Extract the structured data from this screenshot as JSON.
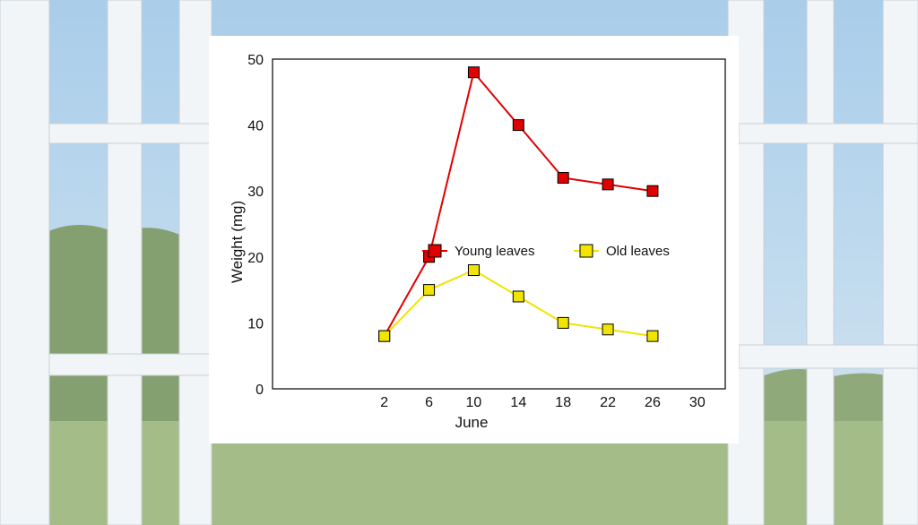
{
  "colors": {
    "sky_top": "#a9cdea",
    "sky_bottom": "#cfe3ef",
    "trees": "#7f9b6e",
    "grass": "#9fb884",
    "frame": "#f4f6f8",
    "frame_shadow": "#c9d1d8",
    "card": "#ffffff",
    "young": "#e00000",
    "old": "#f0e400"
  },
  "chart_data": {
    "type": "line",
    "xlabel": "June",
    "ylabel": "Weight (mg)",
    "x_ticks": [
      2,
      6,
      10,
      14,
      18,
      22,
      26,
      30
    ],
    "y_ticks": [
      0,
      10,
      20,
      30,
      40,
      50
    ],
    "xlim": [
      -8,
      32.5
    ],
    "ylim": [
      0,
      50
    ],
    "grid": false,
    "legend_position": "middle",
    "series": [
      {
        "name": "Young leaves",
        "color": "#e00000",
        "marker": "square",
        "x": [
          2,
          6,
          10,
          14,
          18,
          22,
          26
        ],
        "y": [
          8,
          20,
          48,
          40,
          32,
          31,
          30
        ]
      },
      {
        "name": "Old leaves",
        "color": "#f0e400",
        "marker": "square",
        "x": [
          2,
          6,
          10,
          14,
          18,
          22,
          26
        ],
        "y": [
          8,
          15,
          18,
          14,
          10,
          9,
          8
        ]
      }
    ]
  }
}
